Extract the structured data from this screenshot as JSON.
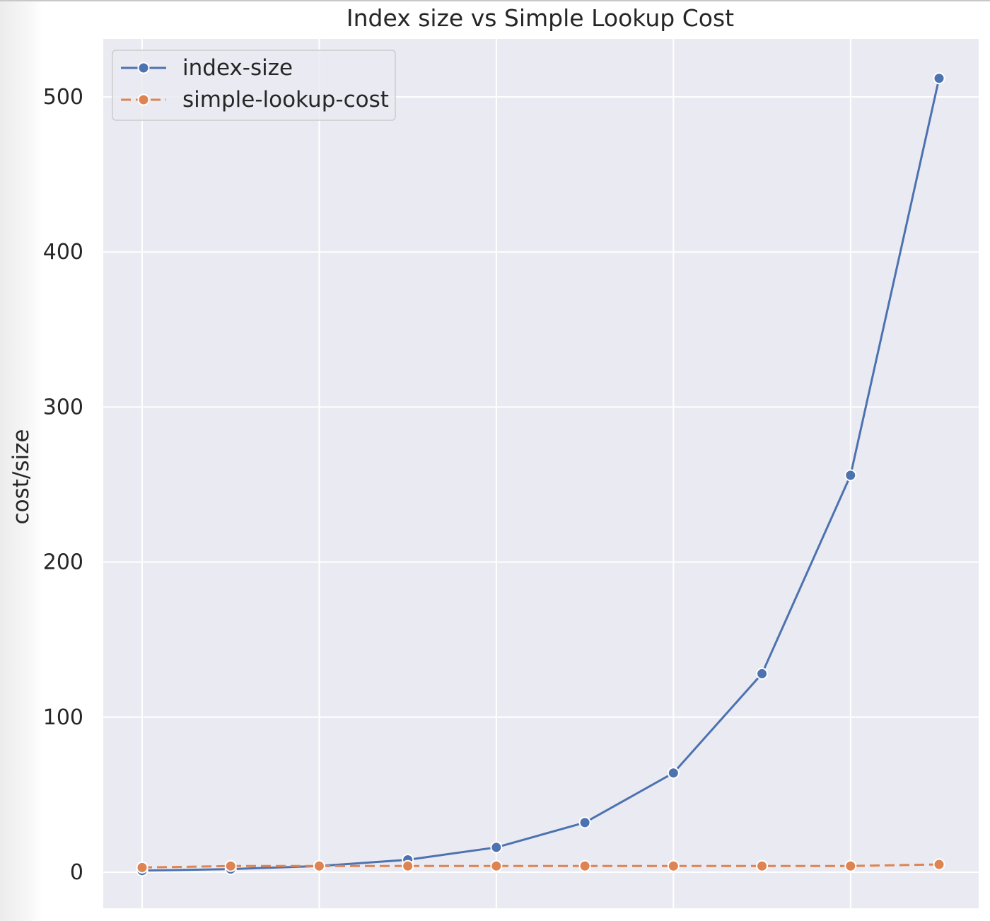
{
  "chart_data": {
    "type": "line",
    "title": "Index size vs Simple Lookup Cost",
    "xlabel": "",
    "ylabel": "cost/size",
    "x": [
      1,
      2,
      3,
      4,
      5,
      6,
      7,
      8,
      9,
      10
    ],
    "xtick_labels": [],
    "ylim": [
      -22,
      537
    ],
    "yticks": [
      0,
      100,
      200,
      300,
      400,
      500
    ],
    "grid": true,
    "legend_position": "top-left",
    "series": [
      {
        "name": "index-size",
        "values": [
          1,
          2,
          4,
          8,
          16,
          32,
          64,
          128,
          256,
          512
        ],
        "color": "#4c72b0",
        "linestyle": "solid",
        "marker": "circle"
      },
      {
        "name": "simple-lookup-cost",
        "values": [
          3,
          4,
          4,
          4,
          4,
          4,
          4,
          4,
          4,
          5
        ],
        "color": "#dd8452",
        "linestyle": "dashed",
        "marker": "circle"
      }
    ],
    "colors": {
      "plot_background": "#eaeaf2",
      "grid": "#ffffff"
    }
  }
}
